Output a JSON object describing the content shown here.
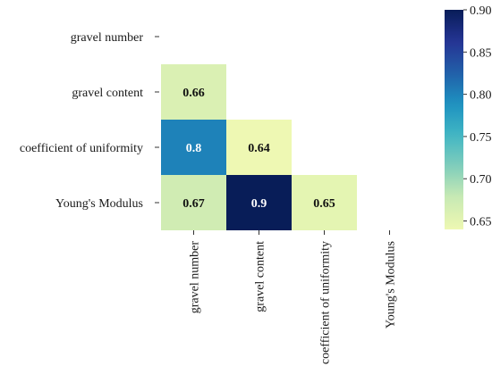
{
  "chart_data": {
    "type": "heatmap",
    "title": "",
    "xlabel": "",
    "ylabel": "",
    "variables": [
      "gravel number",
      "gravel content",
      "coefficient of uniformity",
      "Young's Modulus"
    ],
    "matrix": [
      [
        null,
        null,
        null,
        null
      ],
      [
        0.66,
        null,
        null,
        null
      ],
      [
        0.8,
        0.64,
        null,
        null
      ],
      [
        0.67,
        0.9,
        0.65,
        null
      ]
    ],
    "mask": "upper-triangle-and-diagonal",
    "colorscale": "YlGnBu",
    "colorbar": {
      "min": 0.64,
      "max": 0.9,
      "ticks": [
        "0.90",
        "0.85",
        "0.80",
        "0.75",
        "0.70",
        "0.65"
      ]
    },
    "legend": "colorbar-right",
    "grid": false
  }
}
